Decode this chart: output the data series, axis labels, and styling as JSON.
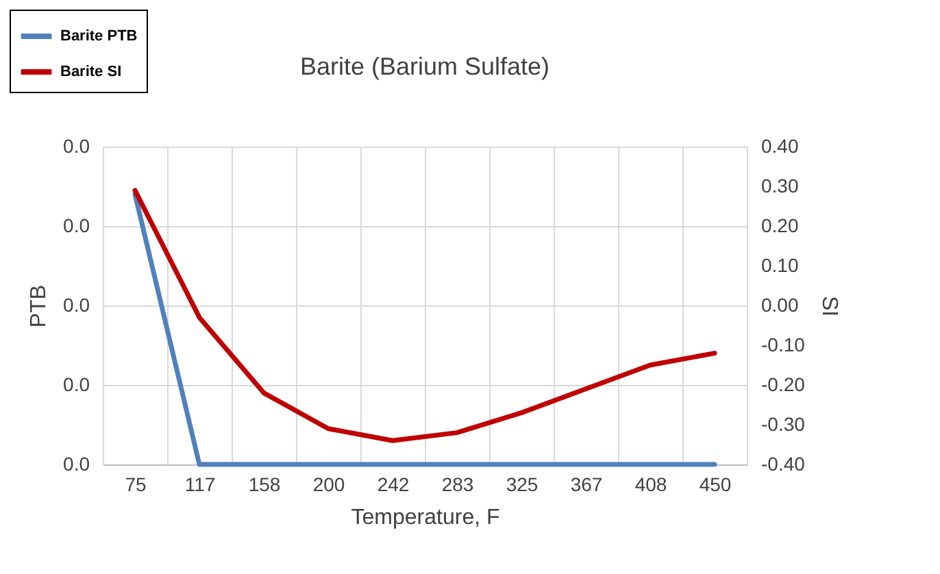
{
  "chart_data": {
    "type": "line",
    "title": "Barite (Barium Sulfate)",
    "xlabel": "Temperature, F",
    "ylabel": "PTB",
    "y2label": "SI",
    "categories": [
      "75",
      "117",
      "158",
      "200",
      "242",
      "283",
      "325",
      "367",
      "408",
      "450"
    ],
    "series": [
      {
        "name": "Barite PTB",
        "color": "#4f81bd",
        "values": [
          0.034,
          0,
          0,
          0,
          0,
          0,
          0,
          0,
          0,
          0
        ]
      },
      {
        "name": "Barite SI",
        "color": "#c00000",
        "axis": "y2",
        "values": [
          0.29,
          -0.03,
          -0.22,
          -0.31,
          -0.34,
          -0.32,
          -0.27,
          -0.21,
          -0.15,
          -0.12
        ]
      }
    ],
    "ylim": [
      0,
      0.04
    ],
    "yticks": [
      {
        "value": 0,
        "label": "0.0"
      },
      {
        "value": 0.01,
        "label": "0.0"
      },
      {
        "value": 0.02,
        "label": "0.0"
      },
      {
        "value": 0.03,
        "label": "0.0"
      },
      {
        "value": 0.04,
        "label": "0.0"
      }
    ],
    "y2lim": [
      -0.4,
      0.4
    ],
    "y2ticks": [
      {
        "value": -0.4,
        "label": "-0.40"
      },
      {
        "value": -0.3,
        "label": "-0.30"
      },
      {
        "value": -0.2,
        "label": "-0.20"
      },
      {
        "value": -0.1,
        "label": "-0.10"
      },
      {
        "value": 0,
        "label": "0.00"
      },
      {
        "value": 0.1,
        "label": "0.10"
      },
      {
        "value": 0.2,
        "label": "0.20"
      },
      {
        "value": 0.3,
        "label": "0.30"
      },
      {
        "value": 0.4,
        "label": "0.40"
      }
    ],
    "grid": true,
    "legend": "top left"
  }
}
